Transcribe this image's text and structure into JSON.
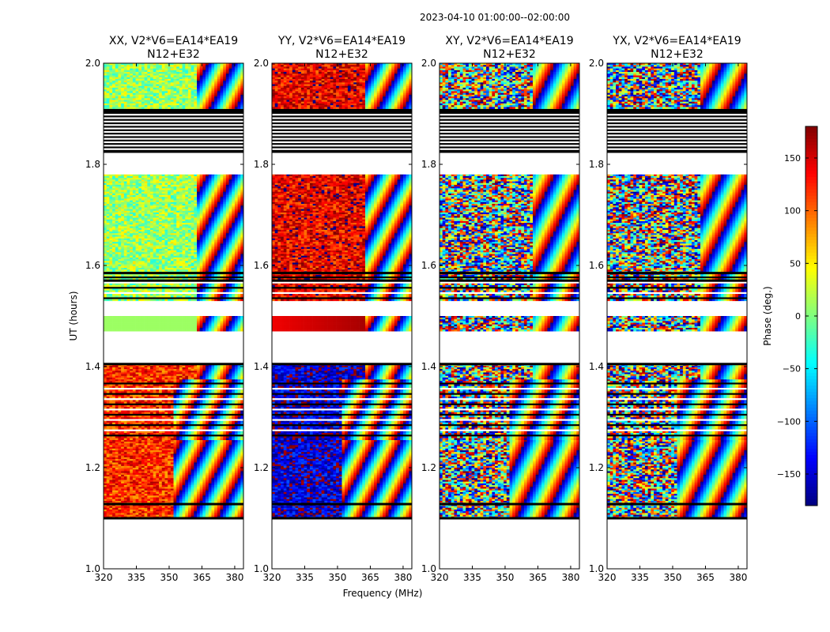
{
  "header": {
    "date_range": "2023-04-10  01:00:00--02:00:00"
  },
  "chart_data": {
    "type": "heatmap",
    "xlabel": "Frequency (MHz)",
    "ylabel": "UT (hours)",
    "xlim": [
      320,
      384
    ],
    "ylim": [
      1.0,
      2.0
    ],
    "x_ticks": [
      320,
      335,
      350,
      365,
      380
    ],
    "y_ticks": [
      1.0,
      1.2,
      1.4,
      1.6,
      1.8,
      2.0
    ],
    "y_tick_labels": [
      "1.0",
      "1.2",
      "1.4",
      "1.6",
      "1.8",
      "2.0"
    ],
    "panels": [
      {
        "title_line1": "XX, V2*V6=EA14*EA19",
        "title_line2": "N12+E32",
        "pol": "XX",
        "base_phase": 10
      },
      {
        "title_line1": "YY, V2*V6=EA14*EA19",
        "title_line2": "N12+E32",
        "pol": "YY",
        "base_phase": 140
      },
      {
        "title_line1": "XY, V2*V6=EA14*EA19",
        "title_line2": "N12+E32",
        "pol": "XY",
        "base_phase": null
      },
      {
        "title_line1": "YX, V2*V6=EA14*EA19",
        "title_line2": "N12+E32",
        "pol": "YX",
        "base_phase": null
      }
    ],
    "time_segments": [
      {
        "start": 1.1,
        "end": 1.255,
        "kind": "data"
      },
      {
        "start": 1.255,
        "end": 1.375,
        "kind": "striped"
      },
      {
        "start": 1.375,
        "end": 1.405,
        "kind": "data"
      },
      {
        "start": 1.47,
        "end": 1.5,
        "kind": "uniform"
      },
      {
        "start": 1.53,
        "end": 1.585,
        "kind": "striped"
      },
      {
        "start": 1.585,
        "end": 1.78,
        "kind": "data"
      },
      {
        "start": 1.825,
        "end": 1.91,
        "kind": "flagged"
      },
      {
        "start": 1.91,
        "end": 2.0,
        "kind": "data"
      }
    ],
    "colorbar": {
      "label": "Phase (deg.)",
      "range": [
        -180,
        180
      ],
      "ticks": [
        150,
        100,
        50,
        0,
        -50,
        -100,
        -150
      ],
      "tick_labels": [
        "150",
        "100",
        "50",
        "0",
        "−50",
        "−100",
        "−150"
      ],
      "colormap": "jet"
    }
  }
}
